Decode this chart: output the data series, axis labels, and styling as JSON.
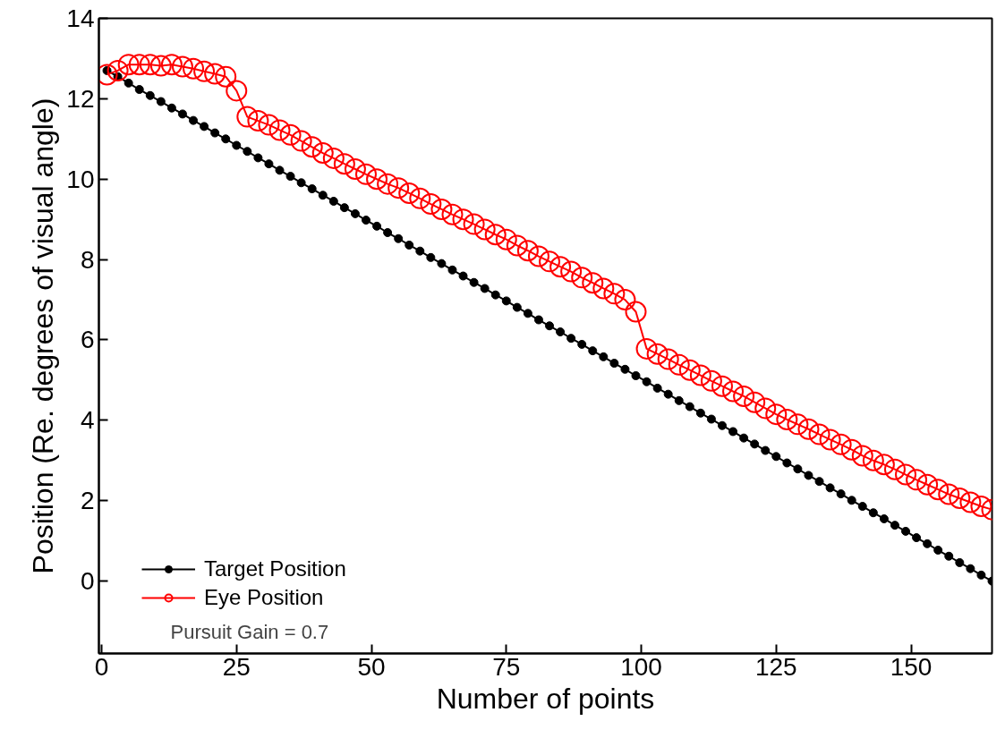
{
  "chart_data": {
    "type": "line",
    "xlabel": "Number of points",
    "ylabel": "Position (Re. degrees of visual angle)",
    "x": [
      1,
      3,
      5,
      7,
      9,
      11,
      13,
      15,
      17,
      19,
      21,
      23,
      25,
      27,
      29,
      31,
      33,
      35,
      37,
      39,
      41,
      43,
      45,
      47,
      49,
      51,
      53,
      55,
      57,
      59,
      61,
      63,
      65,
      67,
      69,
      71,
      73,
      75,
      77,
      79,
      81,
      83,
      85,
      87,
      89,
      91,
      93,
      95,
      97,
      99,
      101,
      103,
      105,
      107,
      109,
      111,
      113,
      115,
      117,
      119,
      121,
      123,
      125,
      127,
      129,
      131,
      133,
      135,
      137,
      139,
      141,
      143,
      145,
      147,
      149,
      151,
      153,
      155,
      157,
      159,
      161,
      163,
      165
    ],
    "series": [
      {
        "name": "Target Position",
        "color": "#000000",
        "marker": "circle",
        "values": [
          12.7,
          12.55,
          12.39,
          12.23,
          12.08,
          11.93,
          11.77,
          11.62,
          11.46,
          11.31,
          11.15,
          11.0,
          10.84,
          10.69,
          10.53,
          10.38,
          10.22,
          10.07,
          9.91,
          9.76,
          9.6,
          9.45,
          9.29,
          9.14,
          8.98,
          8.83,
          8.67,
          8.52,
          8.36,
          8.21,
          8.05,
          7.9,
          7.74,
          7.59,
          7.43,
          7.28,
          7.12,
          6.97,
          6.81,
          6.66,
          6.5,
          6.35,
          6.2,
          6.04,
          5.89,
          5.73,
          5.58,
          5.42,
          5.27,
          5.11,
          4.96,
          4.8,
          4.65,
          4.49,
          4.34,
          4.18,
          4.03,
          3.87,
          3.72,
          3.56,
          3.41,
          3.25,
          3.1,
          2.94,
          2.79,
          2.63,
          2.48,
          2.32,
          2.17,
          2.01,
          1.86,
          1.7,
          1.55,
          1.39,
          1.24,
          1.08,
          0.93,
          0.77,
          0.62,
          0.46,
          0.31,
          0.15,
          0.0
        ]
      },
      {
        "name": "Eye Position",
        "color": "#ff0000",
        "marker": "circle_open",
        "values": [
          12.6,
          12.7,
          12.85,
          12.85,
          12.85,
          12.82,
          12.85,
          12.8,
          12.75,
          12.68,
          12.62,
          12.55,
          12.2,
          11.55,
          11.45,
          11.35,
          11.22,
          11.1,
          10.95,
          10.8,
          10.65,
          10.52,
          10.38,
          10.25,
          10.12,
          10.0,
          9.88,
          9.78,
          9.65,
          9.52,
          9.38,
          9.25,
          9.12,
          9.0,
          8.88,
          8.75,
          8.62,
          8.5,
          8.35,
          8.22,
          8.08,
          7.95,
          7.82,
          7.7,
          7.55,
          7.42,
          7.28,
          7.15,
          7.0,
          6.7,
          5.78,
          5.65,
          5.52,
          5.38,
          5.25,
          5.12,
          4.98,
          4.85,
          4.72,
          4.6,
          4.45,
          4.3,
          4.15,
          4.02,
          3.9,
          3.78,
          3.65,
          3.52,
          3.4,
          3.27,
          3.12,
          3.0,
          2.9,
          2.78,
          2.65,
          2.52,
          2.4,
          2.28,
          2.16,
          2.06,
          1.96,
          1.86,
          1.78
        ]
      }
    ],
    "xlim": [
      -0.5,
      165
    ],
    "xticks": [
      0,
      25,
      50,
      75,
      100,
      125,
      150
    ],
    "ylim": [
      -1.8,
      14
    ],
    "yticks": [
      0,
      2,
      4,
      6,
      8,
      10,
      12,
      14
    ],
    "grid": false,
    "legend": "bottom left",
    "annotations": [
      "Pursuit Gain = 0.7"
    ]
  }
}
